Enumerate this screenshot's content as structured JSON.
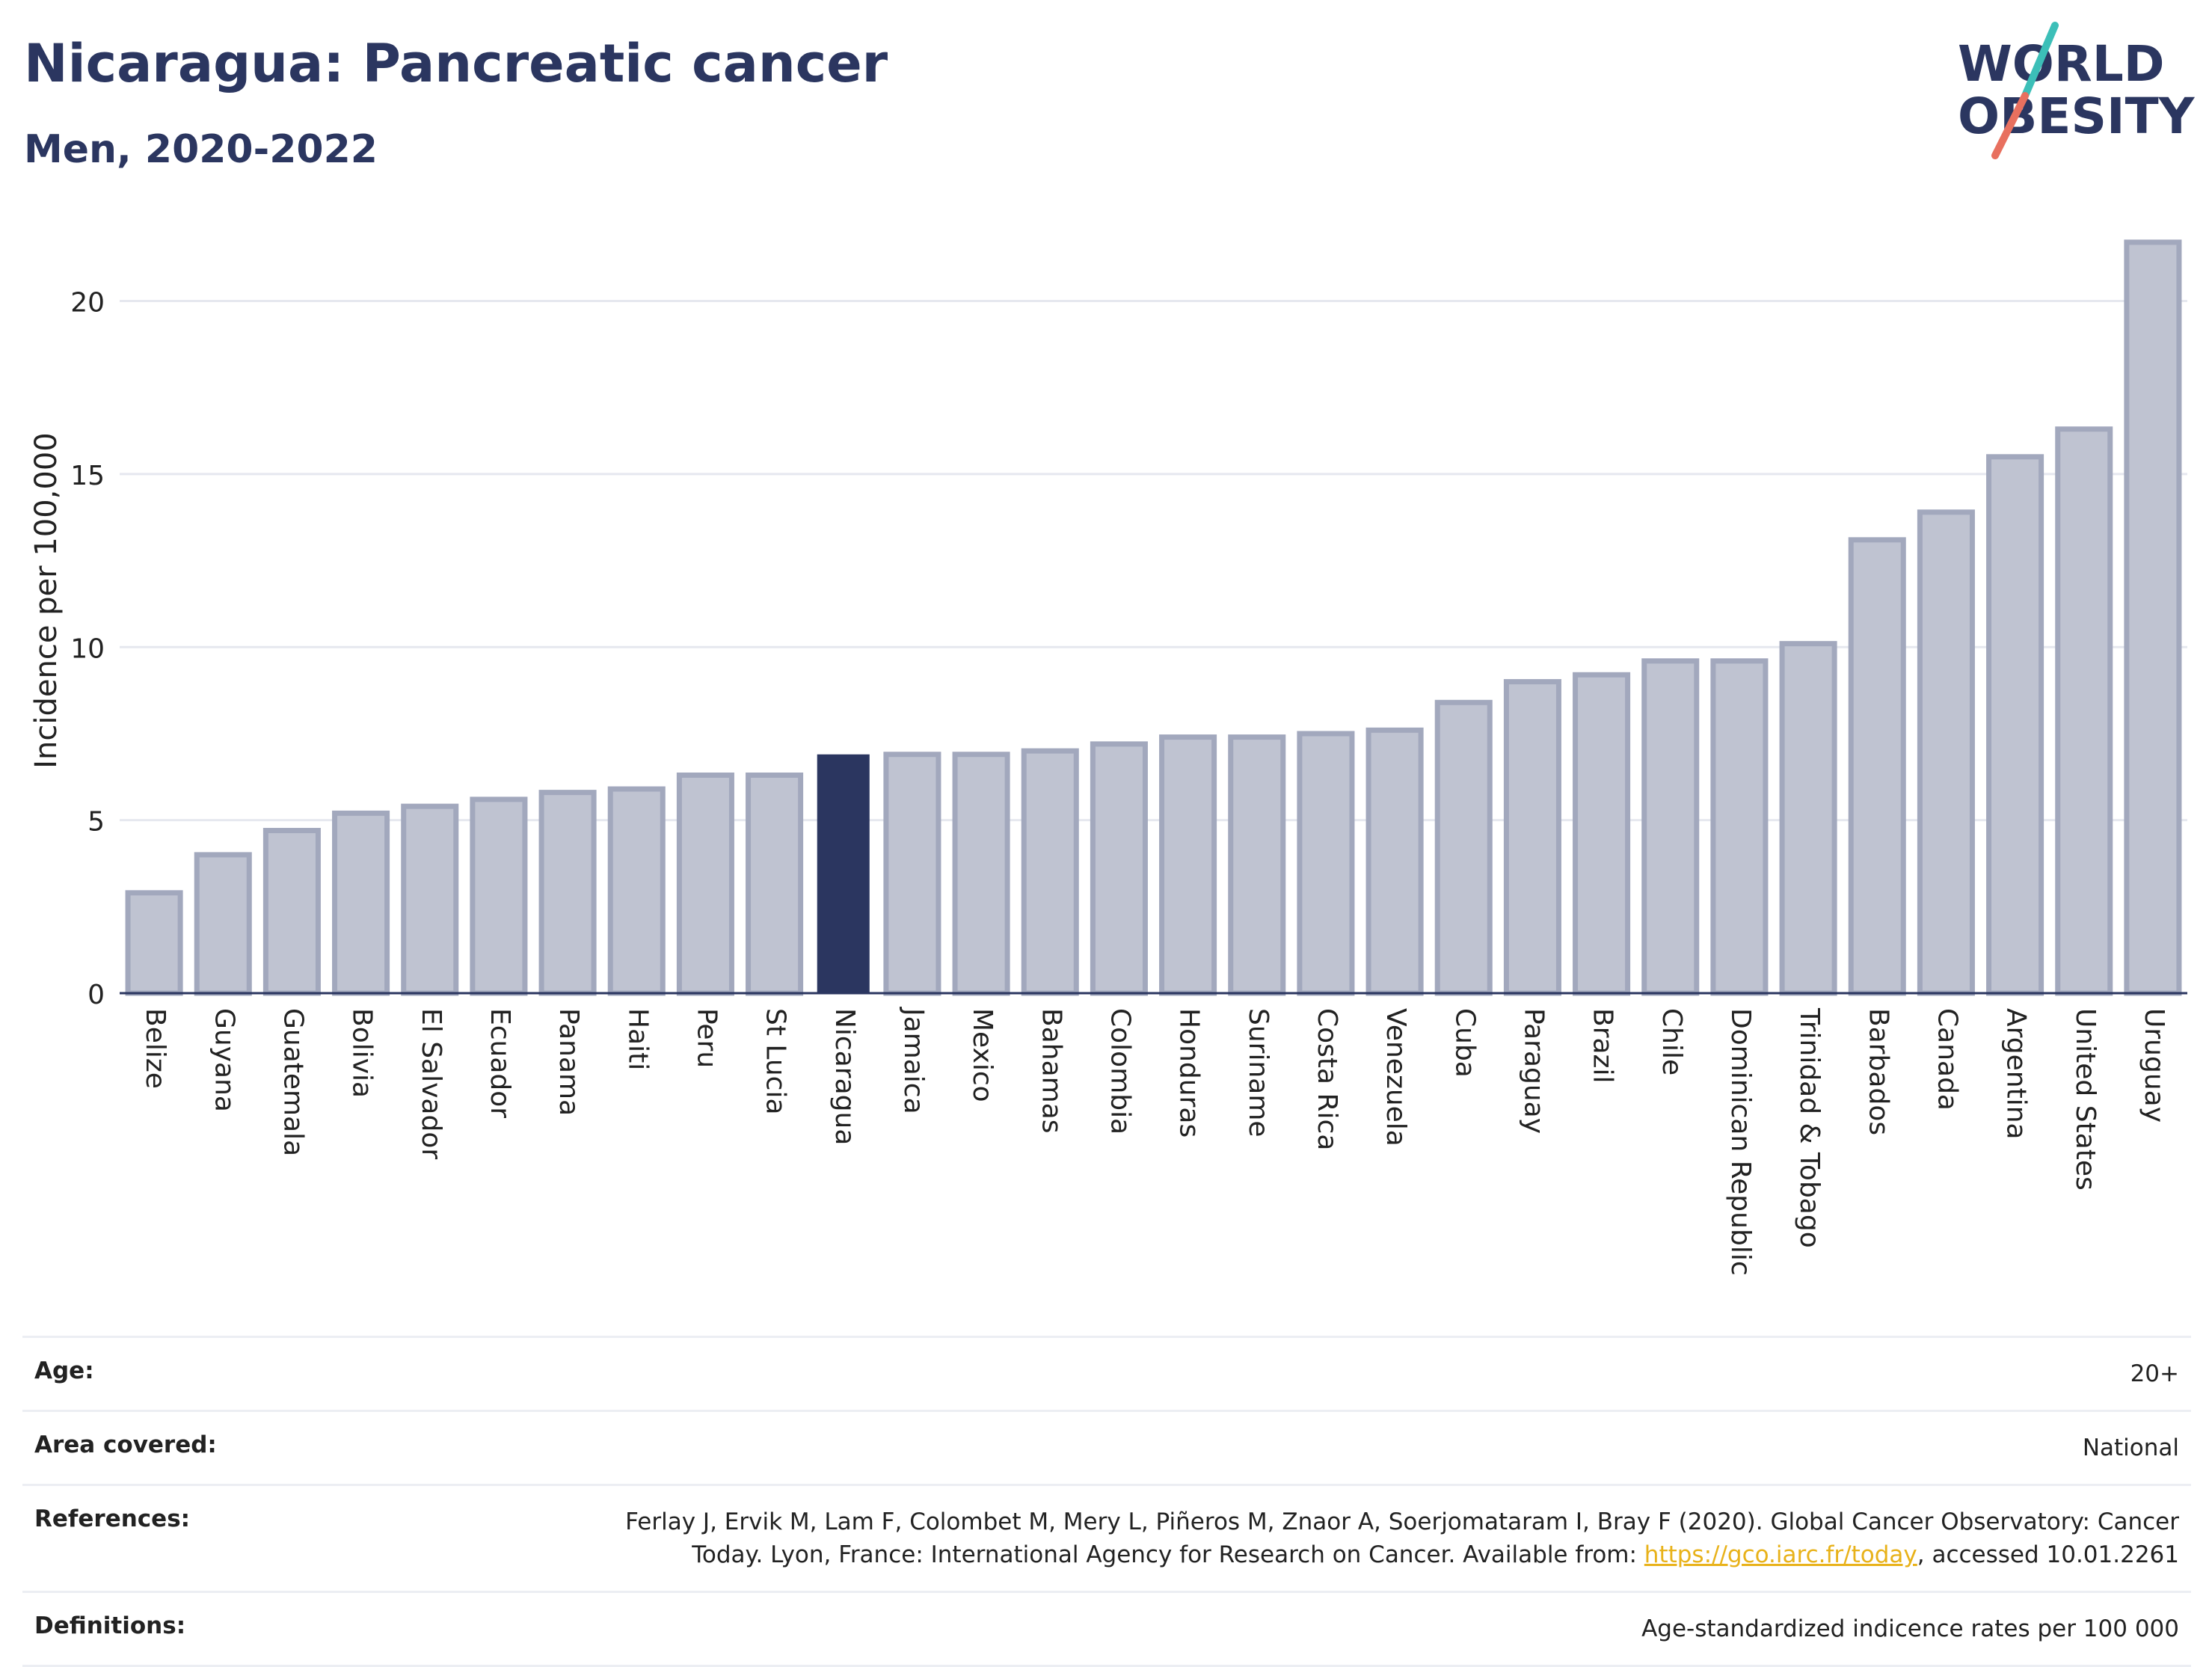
{
  "header": {
    "title": "Nicaragua: Pancreatic cancer",
    "subtitle": "Men, 2020-2022"
  },
  "logo": {
    "line1": "WORLD",
    "line2": "OBESITY"
  },
  "chart_data": {
    "type": "bar",
    "ylabel": "Incidence per 100,000",
    "ylim": [
      0,
      22
    ],
    "yticks": [
      0,
      5,
      10,
      15,
      20
    ],
    "grid": true,
    "highlight": "Nicaragua",
    "colors": {
      "highlight": "#2b3660",
      "bar": "#bfc3d1",
      "bar_edge": "#a2a8bd",
      "grid": "#e6e8ef",
      "axis": "#2b3660"
    },
    "categories": [
      "Belize",
      "Guyana",
      "Guatemala",
      "Bolivia",
      "El Salvador",
      "Ecuador",
      "Panama",
      "Haiti",
      "Peru",
      "St Lucia",
      "Nicaragua",
      "Jamaica",
      "Mexico",
      "Bahamas",
      "Colombia",
      "Honduras",
      "Suriname",
      "Costa Rica",
      "Venezuela",
      "Cuba",
      "Paraguay",
      "Brazil",
      "Chile",
      "Dominican Republic",
      "Trinidad & Tobago",
      "Barbados",
      "Canada",
      "Argentina",
      "United States",
      "Uruguay"
    ],
    "values": [
      2.9,
      4.0,
      4.7,
      5.2,
      5.4,
      5.6,
      5.8,
      5.9,
      6.3,
      6.3,
      6.9,
      6.9,
      6.9,
      7.0,
      7.2,
      7.4,
      7.4,
      7.5,
      7.6,
      8.4,
      9.0,
      9.2,
      9.6,
      9.6,
      10.1,
      13.1,
      13.9,
      15.5,
      16.3,
      21.7
    ]
  },
  "footer": {
    "age_label": "Age:",
    "age_value": "20+",
    "area_label": "Area covered:",
    "area_value": "National",
    "references_label": "References:",
    "references_text": "Ferlay J, Ervik M, Lam F, Colombet M, Mery L, Piñeros M, Znaor A, Soerjomataram I, Bray F (2020). Global Cancer Observatory: Cancer Today. Lyon, France: International Agency for Research on Cancer. Available from:",
    "references_link": "https://gco.iarc.fr/today",
    "references_suffix": ", accessed 10.01.2261",
    "definitions_label": "Definitions:",
    "definitions_value": "Age-standardized indicence rates per 100 000"
  }
}
